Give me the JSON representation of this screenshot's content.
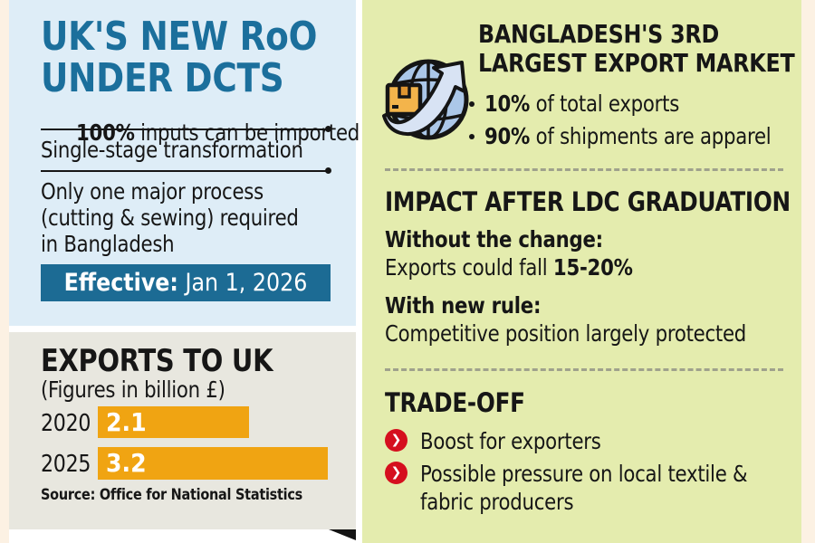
{
  "rules_panel": {
    "title": "UK'S NEW RoO\nUNDER DCTS",
    "point1_bold": "100%",
    "point1_rest": " inputs can be imported",
    "point2": "Single-stage transformation",
    "point3": "Only one major process\n(cutting & sewing) required\nin Bangladesh",
    "effective_bold": "Effective:",
    "effective_rest": " Jan 1, 2026"
  },
  "exports_panel": {
    "title": "EXPORTS TO UK",
    "subtitle": "(Figures in billion £)",
    "source": "Source: Office for National Statistics",
    "rows": [
      {
        "year": "2020",
        "value": "2.1"
      },
      {
        "year": "2025",
        "value": "3.2"
      }
    ]
  },
  "chart_data": {
    "type": "bar",
    "orientation": "horizontal",
    "title": "EXPORTS TO UK",
    "unit": "billion £",
    "categories": [
      "2020",
      "2025"
    ],
    "values": [
      2.1,
      3.2
    ],
    "bar_color": "#f0a412",
    "source": "Office for National Statistics"
  },
  "market_panel": {
    "title": "BANGLADESH'S 3RD\nLARGEST EXPORT MARKET",
    "bullet1_bold": "10%",
    "bullet1_rest": " of total exports",
    "bullet2_bold": "90%",
    "bullet2_rest": " of shipments are apparel"
  },
  "impact_panel": {
    "title": "IMPACT AFTER LDC GRADUATION",
    "without_label": "Without the change:",
    "without_pre": "Exports could fall ",
    "without_bold": "15-20%",
    "with_label": "With new rule:",
    "with_text": "Competitive position largely protected"
  },
  "tradeoff_panel": {
    "title": "TRADE-OFF",
    "item1": "Boost for exporters",
    "item2": "Possible pressure on local textile &\nfabric producers",
    "bullet_glyph": "❯"
  },
  "colors": {
    "accent_blue": "#1b6f9c",
    "banner_teal": "#1c6b94",
    "bar_orange": "#f0a412",
    "blue_panel_bg": "#deedf7",
    "gray_panel_bg": "#e8e7df",
    "green_panel_bg": "#e4ecae",
    "page_cream": "#fcf1e3",
    "bullet_red": "#d50f1e"
  }
}
